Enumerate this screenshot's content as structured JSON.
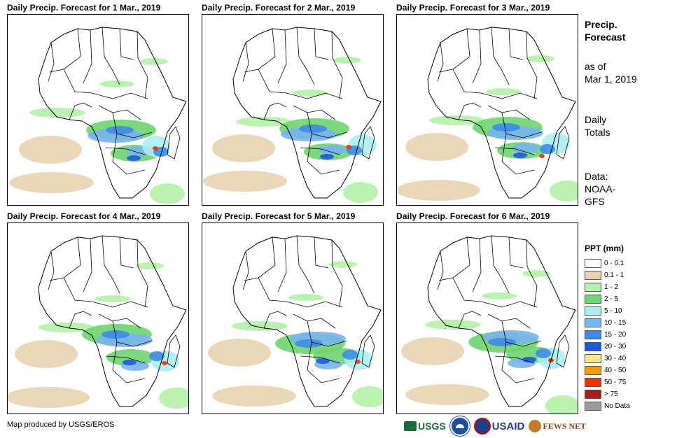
{
  "panels": [
    {
      "title": "Daily Precip. Forecast for 1 Mar., 2019"
    },
    {
      "title": "Daily Precip. Forecast for 2 Mar., 2019"
    },
    {
      "title": "Daily Precip. Forecast for 3 Mar., 2019"
    },
    {
      "title": "Daily Precip. Forecast for 4 Mar., 2019"
    },
    {
      "title": "Daily Precip. Forecast for 5 Mar., 2019"
    },
    {
      "title": "Daily Precip. Forecast for 6 Mar., 2019"
    }
  ],
  "sidebar": {
    "heading_line1": "Precip.",
    "heading_line2": "Forecast",
    "asof_line1": "as of",
    "asof_line2": "Mar 1, 2019",
    "totals_line1": "Daily",
    "totals_line2": "Totals",
    "data_line1": "Data:",
    "data_line2": "NOAA-",
    "data_line3": "GFS"
  },
  "legend": {
    "title": "PPT (mm)",
    "items": [
      {
        "label": "0 - 0.1",
        "color": "#ffffff"
      },
      {
        "label": "0.1 - 1",
        "color": "#e8d2b0"
      },
      {
        "label": "1 - 2",
        "color": "#b4f0a8"
      },
      {
        "label": "2 - 5",
        "color": "#6ed46e"
      },
      {
        "label": "5 - 10",
        "color": "#aaeef0"
      },
      {
        "label": "10 - 15",
        "color": "#78b4f0"
      },
      {
        "label": "15 - 20",
        "color": "#3c8ce6"
      },
      {
        "label": "20 - 30",
        "color": "#1e5adc"
      },
      {
        "label": "30 - 40",
        "color": "#fae68c"
      },
      {
        "label": "40 - 50",
        "color": "#f0a000"
      },
      {
        "label": "50 - 75",
        "color": "#f03200"
      },
      {
        "label": "> 75",
        "color": "#a01e1e"
      },
      {
        "label": "No Data",
        "color": "#999999"
      }
    ]
  },
  "footer": {
    "credit": "Map produced by USGS/EROS",
    "logos": [
      "USGS",
      "NOAA",
      "USAID",
      "FEWS NET"
    ]
  }
}
